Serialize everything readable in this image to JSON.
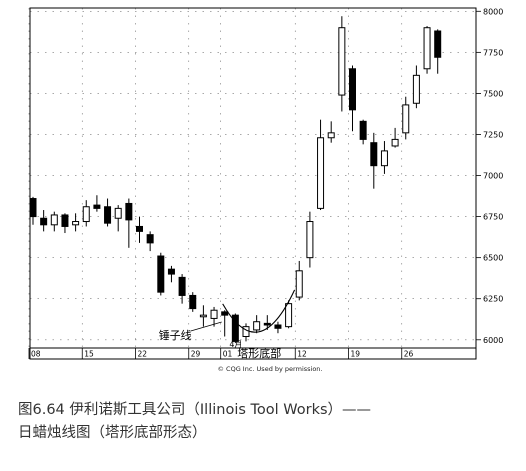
{
  "chart_data": {
    "type": "candlestick",
    "title": "",
    "xlabel": "",
    "ylabel": "",
    "ylim": [
      5950,
      8020
    ],
    "y_ticks": [
      6000,
      6250,
      6500,
      6750,
      7000,
      7250,
      7500,
      7750,
      8000
    ],
    "y_axis_position": "right",
    "grid": "dotted",
    "x_tick_labels": [
      {
        "label": "08",
        "index": 0
      },
      {
        "label": "15",
        "index": 5
      },
      {
        "label": "22",
        "index": 10
      },
      {
        "label": "29",
        "index": 15
      },
      {
        "label": "01",
        "index": 18
      },
      {
        "label": "12",
        "index": 25
      },
      {
        "label": "19",
        "index": 30
      },
      {
        "label": "26",
        "index": 35
      }
    ],
    "month_label": {
      "text": "4月",
      "index": 19
    },
    "series": [
      {
        "values": [
          {
            "o": 6860,
            "h": 6870,
            "l": 6700,
            "c": 6750
          },
          {
            "o": 6740,
            "h": 6790,
            "l": 6660,
            "c": 6700
          },
          {
            "o": 6700,
            "h": 6780,
            "l": 6660,
            "c": 6760
          },
          {
            "o": 6760,
            "h": 6770,
            "l": 6650,
            "c": 6690
          },
          {
            "o": 6700,
            "h": 6770,
            "l": 6660,
            "c": 6720
          },
          {
            "o": 6720,
            "h": 6850,
            "l": 6690,
            "c": 6810
          },
          {
            "o": 6820,
            "h": 6880,
            "l": 6780,
            "c": 6800
          },
          {
            "o": 6810,
            "h": 6860,
            "l": 6690,
            "c": 6710
          },
          {
            "o": 6740,
            "h": 6820,
            "l": 6660,
            "c": 6800
          },
          {
            "o": 6830,
            "h": 6860,
            "l": 6560,
            "c": 6730
          },
          {
            "o": 6690,
            "h": 6750,
            "l": 6590,
            "c": 6660
          },
          {
            "o": 6640,
            "h": 6660,
            "l": 6540,
            "c": 6590
          },
          {
            "o": 6510,
            "h": 6530,
            "l": 6270,
            "c": 6290
          },
          {
            "o": 6430,
            "h": 6450,
            "l": 6350,
            "c": 6400
          },
          {
            "o": 6380,
            "h": 6400,
            "l": 6220,
            "c": 6270
          },
          {
            "o": 6270,
            "h": 6290,
            "l": 6170,
            "c": 6190
          },
          {
            "o": 6140,
            "h": 6210,
            "l": 6080,
            "c": 6150
          },
          {
            "o": 6130,
            "h": 6200,
            "l": 6080,
            "c": 6180
          },
          {
            "o": 6170,
            "h": 6180,
            "l": 6020,
            "c": 6150
          },
          {
            "o": 6150,
            "h": 6160,
            "l": 5980,
            "c": 5990
          },
          {
            "o": 6020,
            "h": 6100,
            "l": 5990,
            "c": 6080
          },
          {
            "o": 6060,
            "h": 6150,
            "l": 6040,
            "c": 6110
          },
          {
            "o": 6100,
            "h": 6150,
            "l": 6060,
            "c": 6090
          },
          {
            "o": 6090,
            "h": 6110,
            "l": 6040,
            "c": 6070
          },
          {
            "o": 6080,
            "h": 6240,
            "l": 6070,
            "c": 6220
          },
          {
            "o": 6260,
            "h": 6480,
            "l": 6240,
            "c": 6420
          },
          {
            "o": 6500,
            "h": 6780,
            "l": 6440,
            "c": 6720
          },
          {
            "o": 6800,
            "h": 7340,
            "l": 6790,
            "c": 7230
          },
          {
            "o": 7230,
            "h": 7330,
            "l": 7200,
            "c": 7260
          },
          {
            "o": 7490,
            "h": 7970,
            "l": 7390,
            "c": 7900
          },
          {
            "o": 7650,
            "h": 7670,
            "l": 7270,
            "c": 7400
          },
          {
            "o": 7330,
            "h": 7340,
            "l": 7190,
            "c": 7220
          },
          {
            "o": 7200,
            "h": 7260,
            "l": 6920,
            "c": 7060
          },
          {
            "o": 7060,
            "h": 7210,
            "l": 7010,
            "c": 7150
          },
          {
            "o": 7180,
            "h": 7290,
            "l": 7170,
            "c": 7220
          },
          {
            "o": 7260,
            "h": 7480,
            "l": 7220,
            "c": 7430
          },
          {
            "o": 7440,
            "h": 7670,
            "l": 7410,
            "c": 7610
          },
          {
            "o": 7650,
            "h": 7910,
            "l": 7620,
            "c": 7900
          },
          {
            "o": 7880,
            "h": 7890,
            "l": 7620,
            "c": 7720
          }
        ]
      }
    ],
    "annotations": [
      {
        "text": "锤子线",
        "index": 18
      },
      {
        "text": "塔形底部",
        "index": 22
      }
    ]
  },
  "credit": "© CQG Inc. Used by permission.",
  "caption": {
    "line1": "图6.64 伊利诺斯工具公司（Illinois Tool Works）——",
    "line2": "日蜡烛线图（塔形底部形态）"
  }
}
